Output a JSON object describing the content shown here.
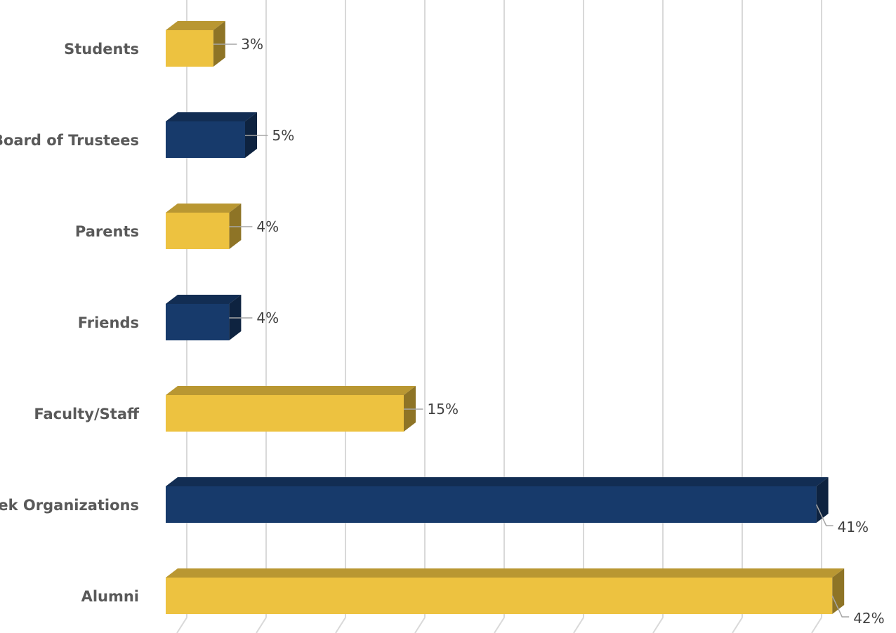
{
  "chart_data": {
    "type": "bar",
    "orientation": "horizontal",
    "style": "3d",
    "categories": [
      "Students",
      "Board of Trustees",
      "Parents",
      "Friends",
      "Faculty/Staff",
      "Greek Organizations",
      "Alumni"
    ],
    "values": [
      3,
      5,
      4,
      4,
      15,
      41,
      42
    ],
    "value_labels": [
      "3%",
      "5%",
      "4%",
      "4%",
      "15%",
      "41%",
      "42%"
    ],
    "bar_colors": [
      "#EDC240",
      "#173A6B",
      "#EDC240",
      "#173A6B",
      "#EDC240",
      "#173A6B",
      "#EDC240"
    ],
    "xlim": [
      0,
      45
    ],
    "grid": true,
    "legend": "none"
  }
}
